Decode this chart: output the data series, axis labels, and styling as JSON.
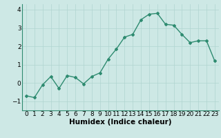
{
  "x": [
    0,
    1,
    2,
    3,
    4,
    5,
    6,
    7,
    8,
    9,
    10,
    11,
    12,
    13,
    14,
    15,
    16,
    17,
    18,
    19,
    20,
    21,
    22,
    23
  ],
  "y": [
    -0.7,
    -0.8,
    -0.1,
    0.35,
    -0.3,
    0.4,
    0.3,
    -0.05,
    0.35,
    0.55,
    1.3,
    1.85,
    2.5,
    2.65,
    3.45,
    3.75,
    3.8,
    3.2,
    3.15,
    2.65,
    2.2,
    2.3,
    2.3,
    1.2
  ],
  "line_color": "#2e8b70",
  "marker": "D",
  "marker_size": 2.0,
  "background_color": "#cde8e5",
  "grid_color": "#b0d4d0",
  "xlabel": "Humidex (Indice chaleur)",
  "xlabel_fontsize": 7.5,
  "ylabel": "",
  "title": "",
  "xlim": [
    -0.5,
    23.5
  ],
  "ylim": [
    -1.5,
    4.3
  ],
  "yticks": [
    -1,
    0,
    1,
    2,
    3,
    4
  ],
  "xtick_labels": [
    "0",
    "1",
    "2",
    "3",
    "4",
    "5",
    "6",
    "7",
    "8",
    "9",
    "10",
    "11",
    "12",
    "13",
    "14",
    "15",
    "16",
    "17",
    "18",
    "19",
    "20",
    "21",
    "22",
    "23"
  ],
  "tick_fontsize": 6.5,
  "linewidth": 1.0
}
